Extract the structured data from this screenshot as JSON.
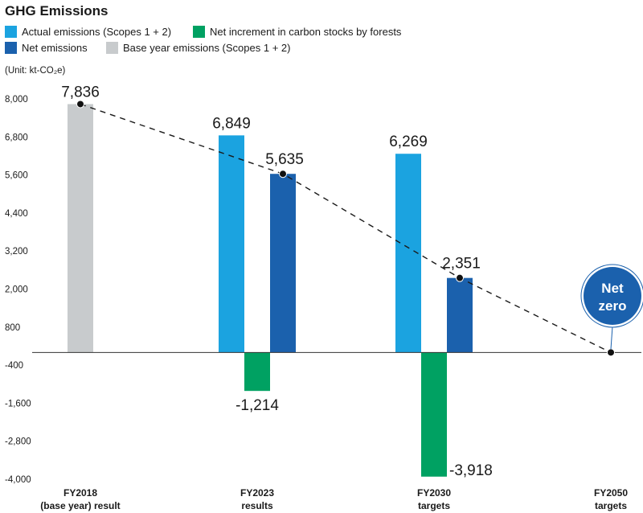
{
  "colors": {
    "actual": "#1ba3e0",
    "forest": "#00a162",
    "net": "#1b61ad",
    "base": "#c8cbcd",
    "netzero_badge": "#1b61ad"
  },
  "chart_data": {
    "type": "bar",
    "title": "GHG Emissions",
    "unit_label": "(Unit: kt-CO₂e)",
    "ylim": [
      -4000,
      8000
    ],
    "yticks": [
      "8,000",
      "6,800",
      "5,600",
      "4,400",
      "3,200",
      "2,000",
      "800",
      "-400",
      "-1,600",
      "-2,800",
      "-4,000"
    ],
    "ytick_values": [
      8000,
      6800,
      5600,
      4400,
      3200,
      2000,
      800,
      -400,
      -1600,
      -2800,
      -4000
    ],
    "grid": false,
    "legend_position": "top-left",
    "legend": [
      {
        "key": "actual",
        "label": "Actual emissions (Scopes 1 + 2)"
      },
      {
        "key": "forest",
        "label": "Net increment in carbon stocks by forests"
      },
      {
        "key": "net",
        "label": "Net emissions"
      },
      {
        "key": "base",
        "label": "Base year emissions (Scopes 1 + 2)"
      }
    ],
    "categories": [
      {
        "line1": "FY2018",
        "line2": "(base year) result"
      },
      {
        "line1": "FY2023",
        "line2": "results"
      },
      {
        "line1": "FY2030",
        "line2": "targets"
      },
      {
        "line1": "FY2050",
        "line2": "targets"
      }
    ],
    "bars": [
      {
        "category": 0,
        "series": "base",
        "value": 7836,
        "label": "7,836"
      },
      {
        "category": 1,
        "series": "actual",
        "value": 6849,
        "label": "6,849"
      },
      {
        "category": 1,
        "series": "forest",
        "value": -1214,
        "label": "-1,214"
      },
      {
        "category": 1,
        "series": "net",
        "value": 5635,
        "label": "5,635"
      },
      {
        "category": 2,
        "series": "actual",
        "value": 6269,
        "label": "6,269"
      },
      {
        "category": 2,
        "series": "forest",
        "value": -3918,
        "label": "-3,918"
      },
      {
        "category": 2,
        "series": "net",
        "value": 2351,
        "label": "2,351"
      }
    ],
    "trend_line": {
      "style": "dashed",
      "points": [
        {
          "category": 0,
          "value": 7836
        },
        {
          "category": 1,
          "value": 5635
        },
        {
          "category": 2,
          "value": 2351
        },
        {
          "category": 3,
          "value": 0
        }
      ]
    },
    "callout": {
      "category": 3,
      "value": 0,
      "line1": "Net",
      "line2": "zero"
    }
  }
}
